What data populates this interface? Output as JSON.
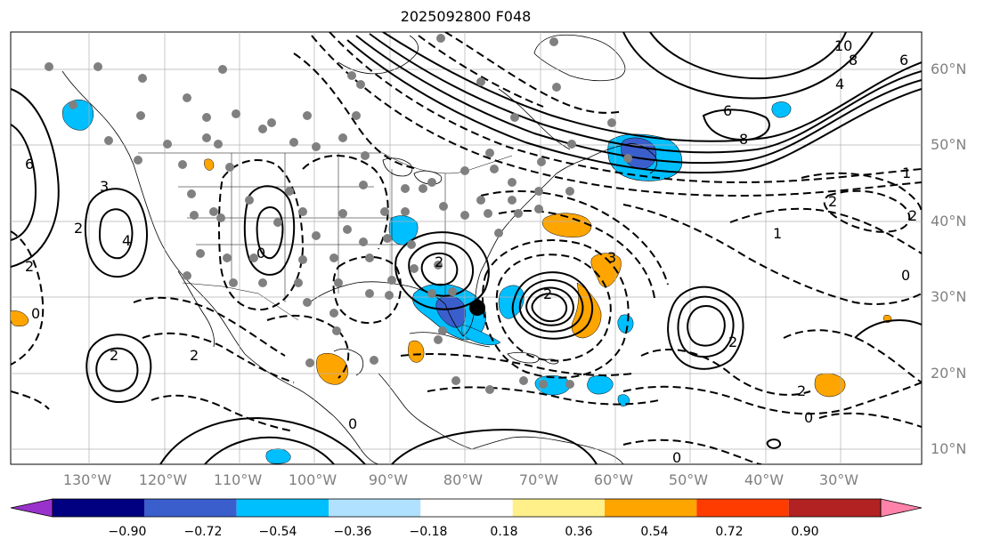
{
  "title": "2025092800 F048",
  "latitude_labels": [
    "60°N",
    "50°N",
    "40°N",
    "30°N",
    "20°N",
    "10°N"
  ],
  "longitude_labels": [
    "130°W",
    "120°W",
    "110°W",
    "100°W",
    "90°W",
    "80°W",
    "70°W",
    "60°W",
    "50°W",
    "40°W",
    "30°W"
  ],
  "colorbar": {
    "ticks": [
      "−0.90",
      "−0.72",
      "−0.54",
      "−0.36",
      "−0.18",
      "0.18",
      "0.36",
      "0.54",
      "0.72",
      "0.90"
    ],
    "colors": [
      "#9932cc",
      "#000080",
      "#3a5fcd",
      "#00bfff",
      "#b0e2ff",
      "#ffffff",
      "#fff08a",
      "#ffa500",
      "#ff3c00",
      "#b22222",
      "#ff82ab"
    ]
  },
  "contour_labels": [
    "10",
    "8",
    "6",
    "4",
    "6",
    "8",
    "2",
    "3",
    "2",
    "0",
    "2",
    "4",
    "6",
    "3",
    "2",
    "0",
    "2",
    "1",
    "0",
    "2",
    "2",
    "2",
    "2",
    "2",
    "1",
    "0",
    "0",
    "0"
  ],
  "colors": {
    "land_outline": "#000000",
    "grid": "#b0b0b0",
    "station": "#808080",
    "storm_center": "#000000"
  }
}
